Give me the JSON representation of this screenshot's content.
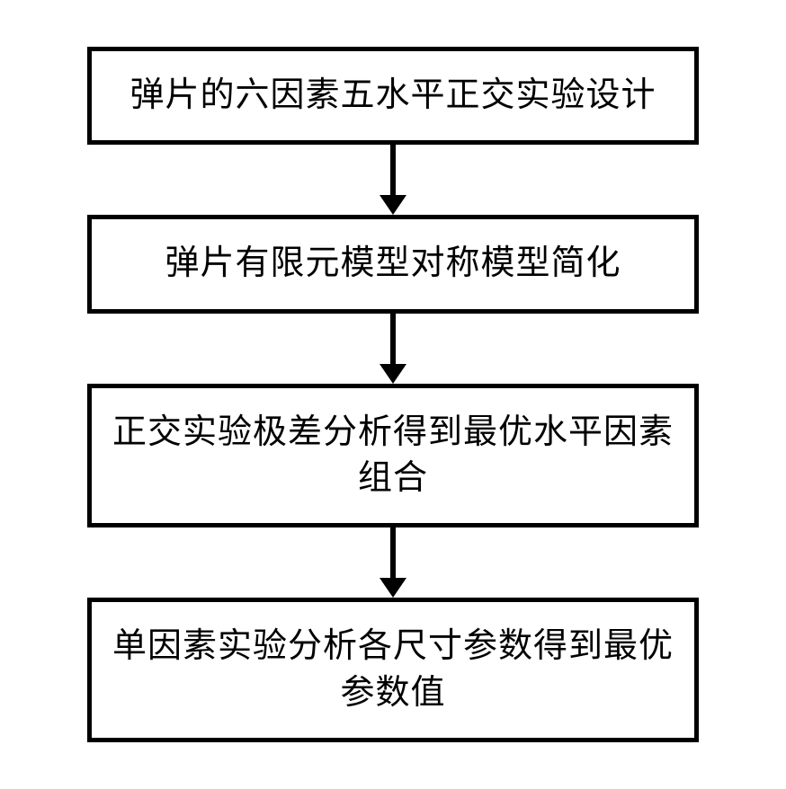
{
  "flowchart": {
    "type": "flowchart",
    "direction": "vertical",
    "background_color": "#ffffff",
    "box_border_color": "#000000",
    "box_border_width": 5,
    "box_background_color": "#ffffff",
    "text_color": "#000000",
    "font_size": 38,
    "arrow_color": "#000000",
    "arrow_line_width": 6,
    "arrow_head_width": 30,
    "arrow_head_height": 22,
    "nodes": [
      {
        "id": "step1",
        "label": "弹片的六因素五水平正交实验设计"
      },
      {
        "id": "step2",
        "label": "弹片有限元模型对称模型简化"
      },
      {
        "id": "step3",
        "label": "正交实验极差分析得到最优水平因素组合"
      },
      {
        "id": "step4",
        "label": "单因素实验分析各尺寸参数得到最优参数值"
      }
    ],
    "edges": [
      {
        "from": "step1",
        "to": "step2"
      },
      {
        "from": "step2",
        "to": "step3"
      },
      {
        "from": "step3",
        "to": "step4"
      }
    ]
  }
}
